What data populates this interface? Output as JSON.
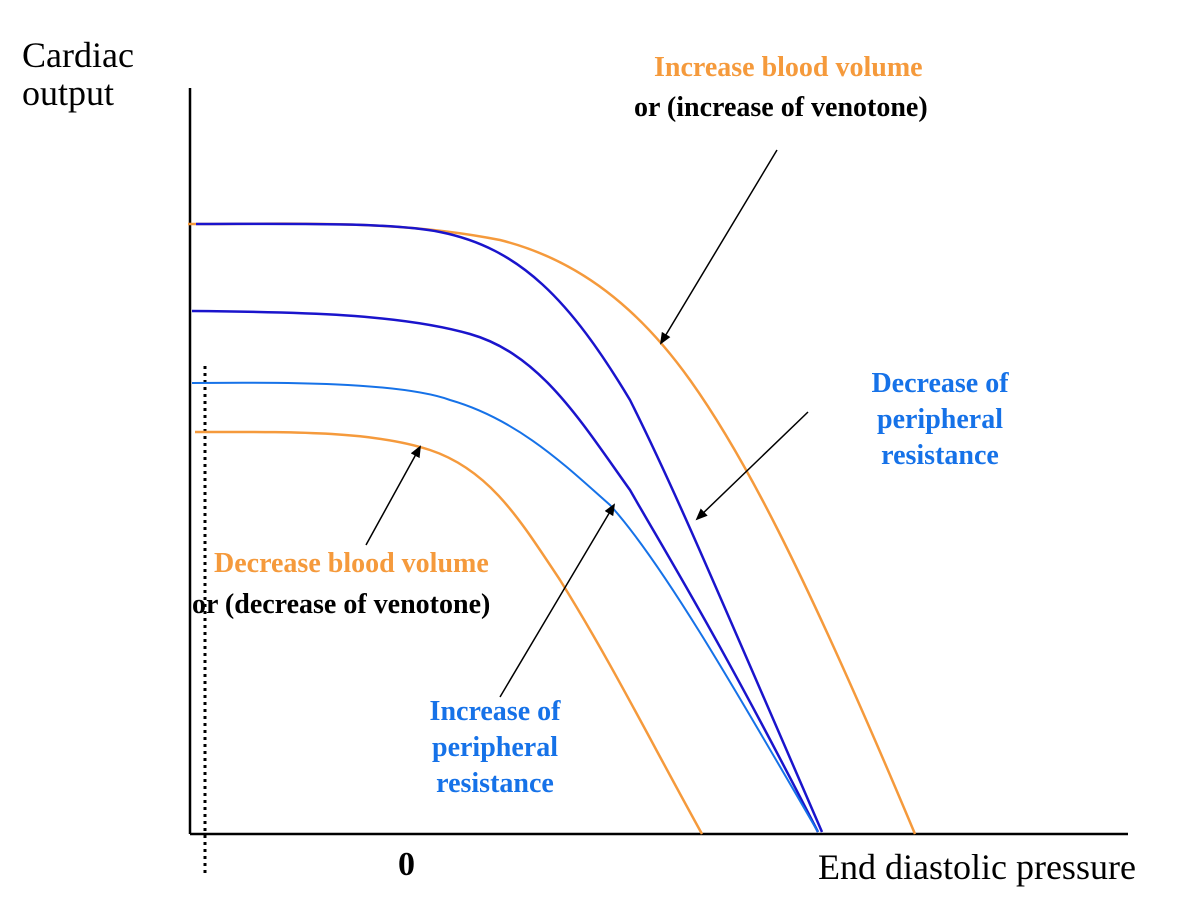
{
  "colors": {
    "orange": "#F59A3C",
    "dark_blue": "#1A14CC",
    "light_blue": "#1672E8",
    "axis": "#000000",
    "text_black": "#000000"
  },
  "axes": {
    "y_label_line1": "Cardiac",
    "y_label_line2": "output",
    "x_label": "End diastolic pressure",
    "x_zero_tick": "0"
  },
  "annotations": {
    "increase_volume": {
      "title": "Increase blood volume",
      "subtitle": "or  (increase of venotone)"
    },
    "decrease_resistance": {
      "line1": "Decrease of",
      "line2": "peripheral",
      "line3": "resistance"
    },
    "decrease_volume": {
      "title": "Decrease blood volume",
      "subtitle": "or  (decrease of venotone)"
    },
    "increase_resistance": {
      "line1": "Increase of",
      "line2": "peripheral",
      "line3": "resistance"
    }
  },
  "curves": [
    {
      "id": "increased-blood-volume",
      "color_key": "orange"
    },
    {
      "id": "decreased-peripheral-resistance",
      "color_key": "dark_blue"
    },
    {
      "id": "baseline",
      "color_key": "dark_blue"
    },
    {
      "id": "increased-peripheral-resistance",
      "color_key": "light_blue"
    },
    {
      "id": "decreased-blood-volume",
      "color_key": "orange"
    }
  ]
}
